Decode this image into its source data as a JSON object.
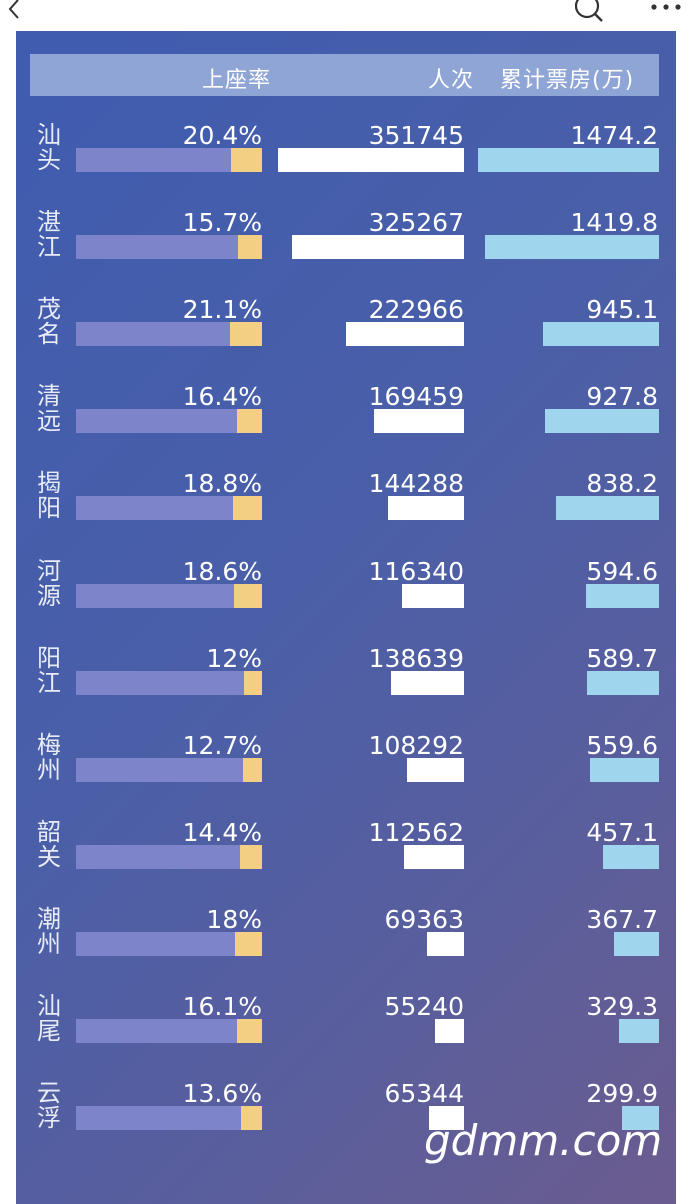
{
  "header": {
    "occupancy_label": "上座率",
    "attendance_label": "人次",
    "box_office_label": "累计票房(万)"
  },
  "watermark": "gdmm.com",
  "icons": [
    "back-icon",
    "search-icon",
    "more-icon"
  ],
  "colors": {
    "panel_start": "#3f5caf",
    "panel_end": "#6b5c8f",
    "header_bar": "#8fa5d6",
    "occupancy_track": "#7e84c9",
    "occupancy_fill": "#f3cf83",
    "attendance_bar": "#ffffff",
    "box_office_bar": "#9fd6ee"
  },
  "chart_data": {
    "type": "table",
    "columns": [
      "",
      "上座率",
      "人次",
      "累计票房(万)"
    ],
    "rows": [
      {
        "city": "汕头",
        "occupancy_text": "20.4%",
        "occupancy": 20.4,
        "attendance_text": "351745",
        "attendance": 351745,
        "box_office_text": "1474.2",
        "box_office": 1474.2
      },
      {
        "city": "湛江",
        "occupancy_text": "15.7%",
        "occupancy": 15.7,
        "attendance_text": "325267",
        "attendance": 325267,
        "box_office_text": "1419.8",
        "box_office": 1419.8
      },
      {
        "city": "茂名",
        "occupancy_text": "21.1%",
        "occupancy": 21.1,
        "attendance_text": "222966",
        "attendance": 222966,
        "box_office_text": "945.1",
        "box_office": 945.1
      },
      {
        "city": "清远",
        "occupancy_text": "16.4%",
        "occupancy": 16.4,
        "attendance_text": "169459",
        "attendance": 169459,
        "box_office_text": "927.8",
        "box_office": 927.8
      },
      {
        "city": "揭阳",
        "occupancy_text": "18.8%",
        "occupancy": 18.8,
        "attendance_text": "144288",
        "attendance": 144288,
        "box_office_text": "838.2",
        "box_office": 838.2
      },
      {
        "city": "河源",
        "occupancy_text": "18.6%",
        "occupancy": 18.6,
        "attendance_text": "116340",
        "attendance": 116340,
        "box_office_text": "594.6",
        "box_office": 594.6
      },
      {
        "city": "阳江",
        "occupancy_text": "12%",
        "occupancy": 12,
        "attendance_text": "138639",
        "attendance": 138639,
        "box_office_text": "589.7",
        "box_office": 589.7
      },
      {
        "city": "梅州",
        "occupancy_text": "12.7%",
        "occupancy": 12.7,
        "attendance_text": "108292",
        "attendance": 108292,
        "box_office_text": "559.6",
        "box_office": 559.6
      },
      {
        "city": "韶关",
        "occupancy_text": "14.4%",
        "occupancy": 14.4,
        "attendance_text": "112562",
        "attendance": 112562,
        "box_office_text": "457.1",
        "box_office": 457.1
      },
      {
        "city": "潮州",
        "occupancy_text": "18%",
        "occupancy": 18,
        "attendance_text": "69363",
        "attendance": 69363,
        "box_office_text": "367.7",
        "box_office": 367.7
      },
      {
        "city": "汕尾",
        "occupancy_text": "16.1%",
        "occupancy": 16.1,
        "attendance_text": "55240",
        "attendance": 55240,
        "box_office_text": "329.3",
        "box_office": 329.3
      },
      {
        "city": "云浮",
        "occupancy_text": "13.6%",
        "occupancy": 13.6,
        "attendance_text": "65344",
        "attendance": 65344,
        "box_office_text": "299.9",
        "box_office": 299.9
      }
    ]
  }
}
